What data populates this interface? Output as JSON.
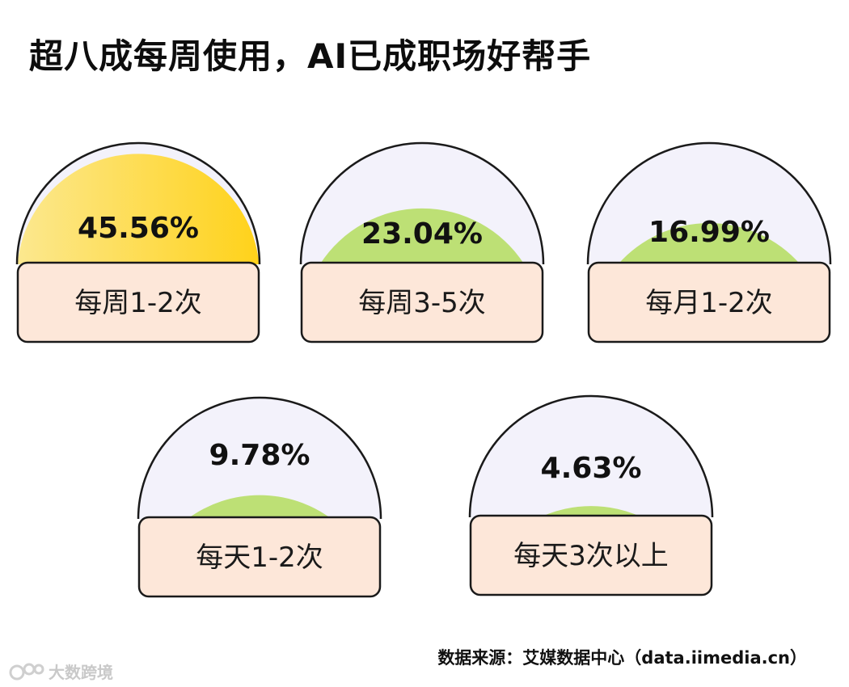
{
  "title": "超八成每周使用，AI已成职场好帮手",
  "source": "数据来源：艾媒数据中心（data.iimedia.cn）",
  "watermark": "大数跨境",
  "colors": {
    "highlight_gradient_start": "#fce88f",
    "highlight_gradient_end": "#ffd21a",
    "fill_green": "#bde075",
    "dome_bg": "#f3f2fb",
    "label_bg": "#fde7d9",
    "outline": "#1a1a1a"
  },
  "chart_data": {
    "type": "gauge",
    "title": "超八成每周使用，AI已成职场好帮手",
    "unit": "%",
    "categories": [
      "每周1-2次",
      "每周3-5次",
      "每月1-2次",
      "每天1-2次",
      "每天3次以上"
    ],
    "values": [
      45.56,
      23.04,
      16.99,
      9.78,
      4.63
    ],
    "value_labels": [
      "45.56%",
      "23.04%",
      "16.99%",
      "9.78%",
      "4.63%"
    ],
    "highlight_index": 0,
    "ylim": [
      0,
      50
    ]
  }
}
